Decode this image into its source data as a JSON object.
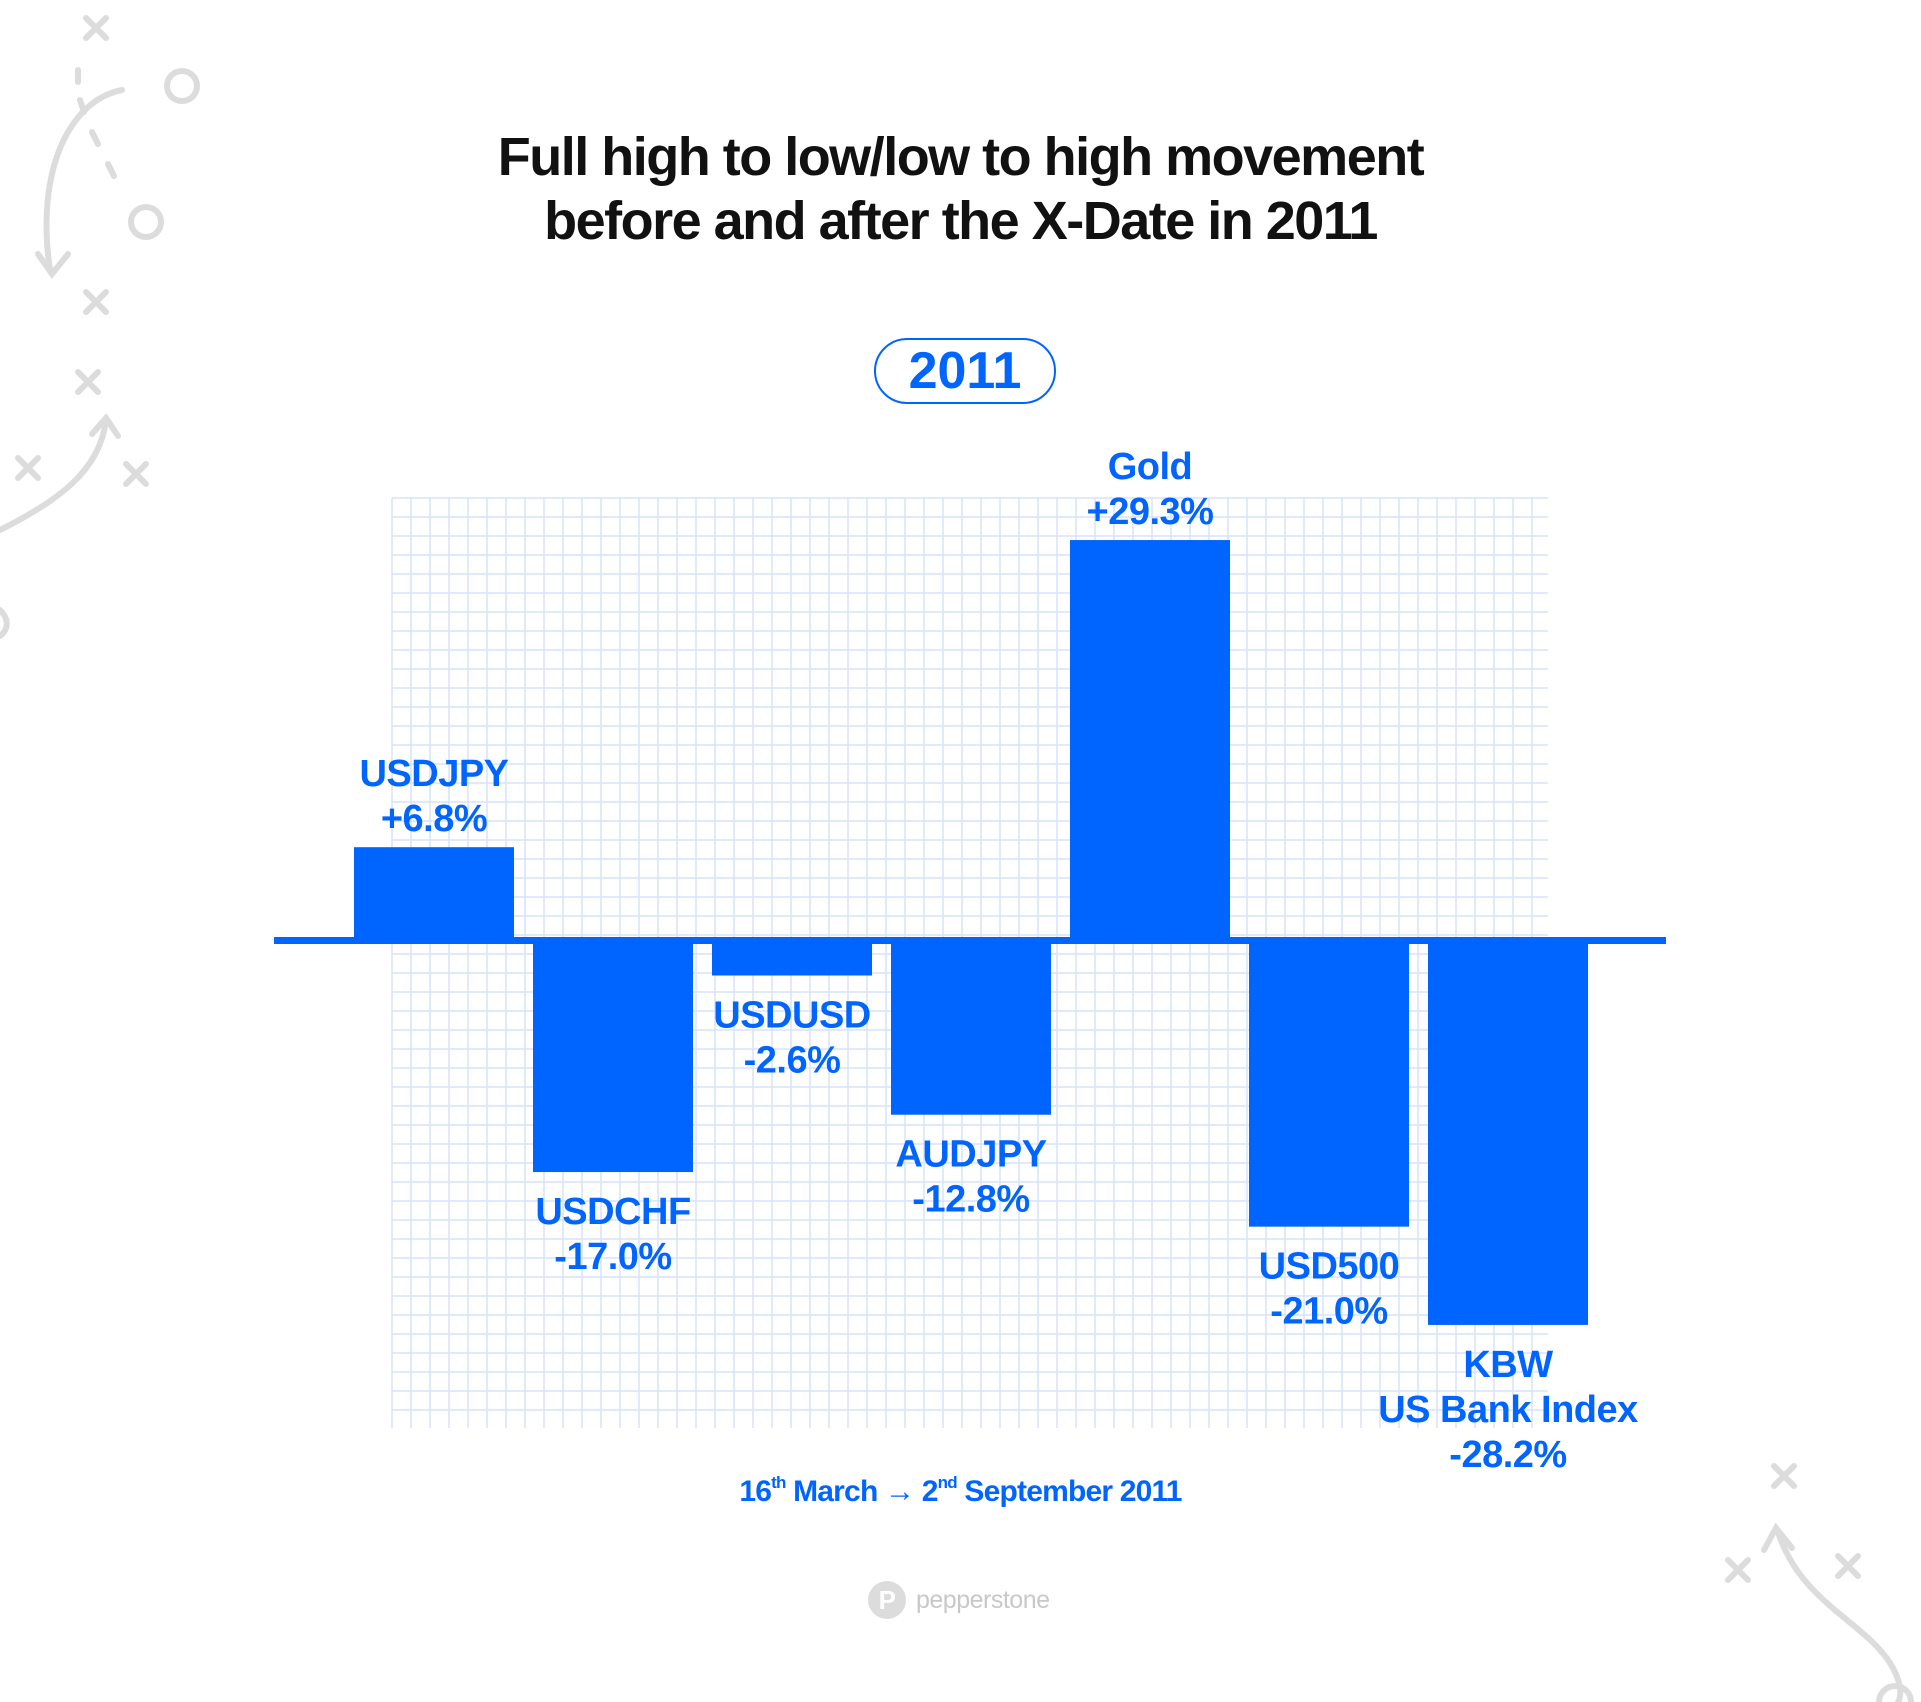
{
  "title_lines": [
    "Full high to low/low to high movement",
    "before and after the X-Date in 2011"
  ],
  "year_badge": "2011",
  "date_range": {
    "start_day": "16",
    "start_suffix": "th",
    "start_month": "March",
    "arrow": "→",
    "end_day": "2",
    "end_suffix": "nd",
    "end_rest": "September 2011"
  },
  "brand": {
    "name": "pepperstone",
    "logo_letter": "P"
  },
  "colors": {
    "accent": "#0064ff",
    "grid": "#d6e4fb",
    "title": "#111111",
    "decoration": "#dcdcdc",
    "brand": "#c8c8c8"
  },
  "chart_data": {
    "type": "bar",
    "title": "Full high to low/low to high movement before and after the X-Date in 2011",
    "xlabel": "16th March → 2nd September 2011",
    "ylabel": "",
    "unit": "%",
    "ylim": [
      -30,
      30
    ],
    "grid": true,
    "categories": [
      "USDJPY",
      "USDCHF",
      "USDUSD",
      "AUDJPY",
      "Gold",
      "USD500",
      "KBW US Bank Index"
    ],
    "label_lines": [
      [
        "USDJPY"
      ],
      [
        "USDCHF"
      ],
      [
        "USDUSD"
      ],
      [
        "AUDJPY"
      ],
      [
        "Gold"
      ],
      [
        "USD500"
      ],
      [
        "KBW",
        "US Bank Index"
      ]
    ],
    "values": [
      6.8,
      -17.0,
      -2.6,
      -12.8,
      29.3,
      -21.0,
      -28.2
    ],
    "value_labels": [
      "+6.8%",
      "-17.0%",
      "-2.6%",
      "-12.8%",
      "+29.3%",
      "-21.0%",
      "-28.2%"
    ]
  }
}
